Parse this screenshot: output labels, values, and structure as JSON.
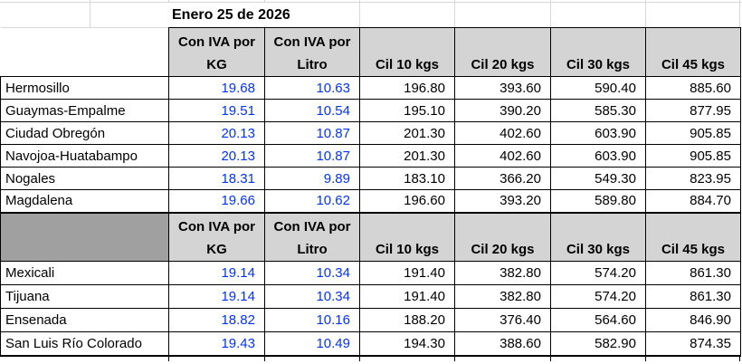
{
  "date_header": "Enero 25 de 2026",
  "columns": [
    {
      "line1": "Con IVA por",
      "line2": "KG"
    },
    {
      "line1": "Con IVA por",
      "line2": "Litro"
    },
    {
      "line1": "",
      "line2": "Cil 10 kgs"
    },
    {
      "line1": "",
      "line2": "Cil 20 kgs"
    },
    {
      "line1": "",
      "line2": "Cil 30 kgs"
    },
    {
      "line1": "",
      "line2": "Cil 45 kgs"
    }
  ],
  "sections": [
    {
      "name": "section-1",
      "rows": [
        {
          "city": "Hermosillo",
          "values": [
            "19.68",
            "10.63",
            "196.80",
            "393.60",
            "590.40",
            "885.60"
          ]
        },
        {
          "city": "Guaymas-Empalme",
          "values": [
            "19.51",
            "10.54",
            "195.10",
            "390.20",
            "585.30",
            "877.95"
          ]
        },
        {
          "city": "Ciudad Obregón",
          "values": [
            "20.13",
            "10.87",
            "201.30",
            "402.60",
            "603.90",
            "905.85"
          ]
        },
        {
          "city": "Navojoa-Huatabampo",
          "values": [
            "20.13",
            "10.87",
            "201.30",
            "402.60",
            "603.90",
            "905.85"
          ]
        },
        {
          "city": "Nogales",
          "values": [
            "18.31",
            "9.89",
            "183.10",
            "366.20",
            "549.30",
            "823.95"
          ]
        },
        {
          "city": "Magdalena",
          "values": [
            "19.66",
            "10.62",
            "196.60",
            "393.20",
            "589.80",
            "884.70"
          ]
        }
      ]
    },
    {
      "name": "section-2",
      "rows": [
        {
          "city": "Mexicali",
          "values": [
            "19.14",
            "10.34",
            "191.40",
            "382.80",
            "574.20",
            "861.30"
          ]
        },
        {
          "city": "Tijuana",
          "values": [
            "19.14",
            "10.34",
            "191.40",
            "382.80",
            "574.20",
            "861.30"
          ]
        },
        {
          "city": "Ensenada",
          "values": [
            "18.82",
            "10.16",
            "188.20",
            "376.40",
            "564.60",
            "846.90"
          ]
        },
        {
          "city": "San Luis Río Colorado",
          "values": [
            "19.43",
            "10.49",
            "194.30",
            "388.60",
            "582.90",
            "874.35"
          ]
        }
      ]
    }
  ],
  "colors": {
    "header_bg": "#d4d4d4",
    "section_label_bg": "#a0a0a0",
    "price_blue": "#0432ff",
    "gridline_gray": "#d8d8d8",
    "border_black": "#000000"
  }
}
